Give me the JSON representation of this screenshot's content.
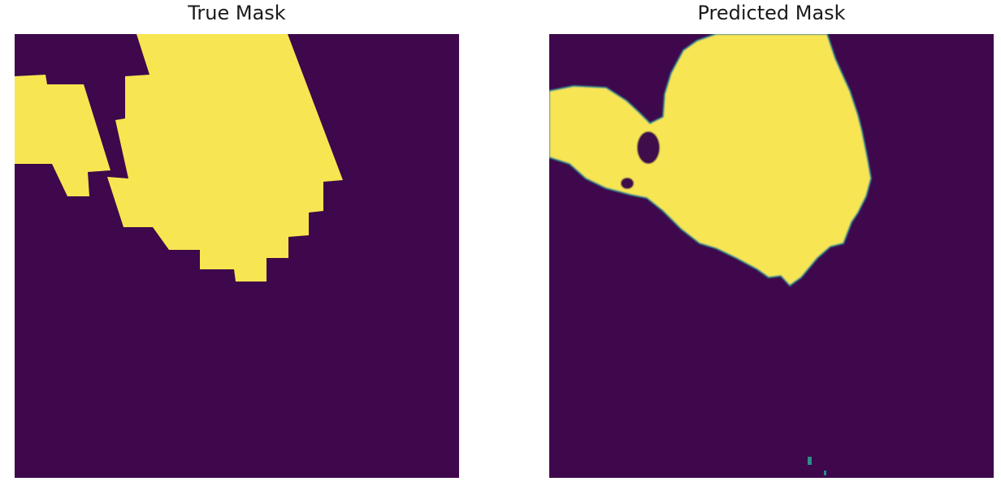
{
  "panels": [
    {
      "title": "True Mask",
      "background_color": "#3f074c",
      "mask_color": "#f8e552"
    },
    {
      "title": "Predicted Mask",
      "background_color": "#3f074c",
      "mask_color": "#f8e552",
      "edge_color": "#2b8f8a"
    }
  ]
}
